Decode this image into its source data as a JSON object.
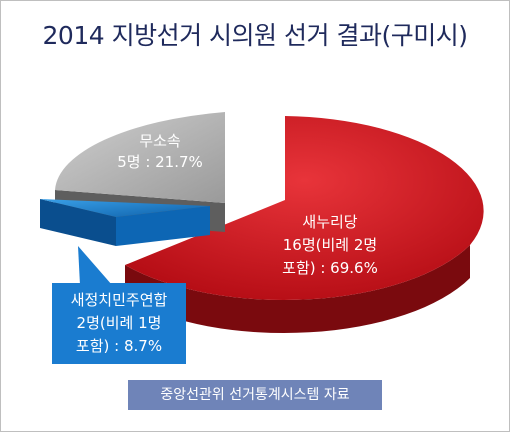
{
  "chart_data": {
    "type": "pie",
    "title": "2014 지방선거 시의원 선거 결과(구미시)",
    "slices": [
      {
        "name": "새누리당",
        "lines": [
          "새누리당",
          "16명(비례 2명",
          "포함) : 69.6%"
        ],
        "value": 69.6,
        "color": "#c8141c"
      },
      {
        "name": "새정치민주연합",
        "lines": [
          "새정치민주연합",
          "2명(비례 1명",
          "포함) : 8.7%"
        ],
        "value": 8.7,
        "color": "#1479c8"
      },
      {
        "name": "무소속",
        "lines": [
          "무소속",
          "5명 : 21.7%"
        ],
        "value": 21.7,
        "color": "#a8a8a8"
      }
    ],
    "legend": "none",
    "labels": "on-slice"
  },
  "source": "중앙선관위 선거통계시스템 자료"
}
